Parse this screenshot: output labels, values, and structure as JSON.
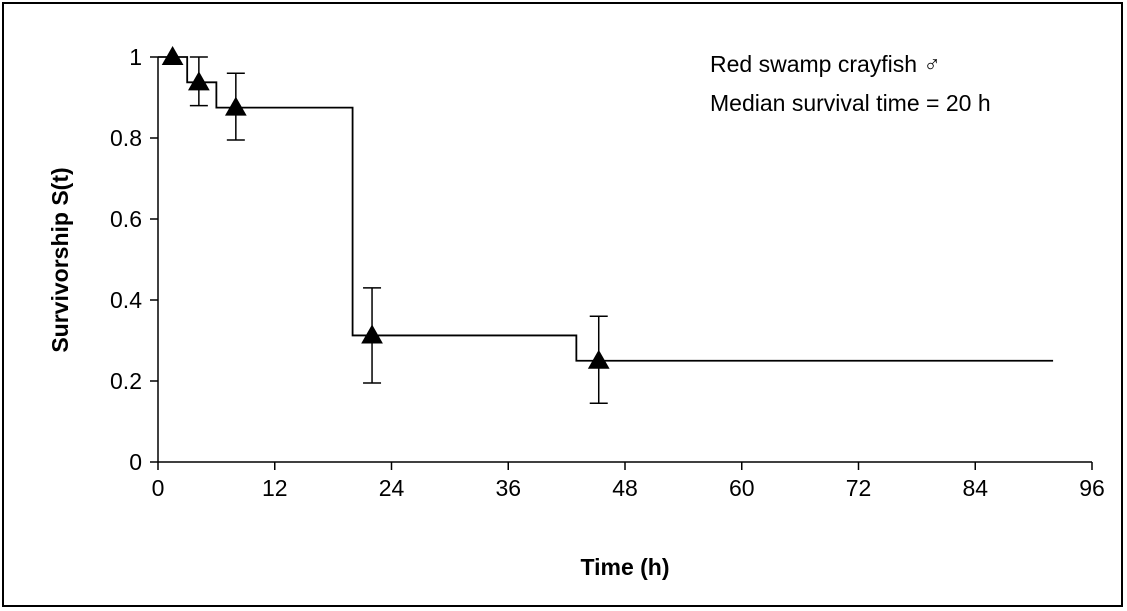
{
  "chart_data": {
    "type": "line",
    "xlabel": "Time (h)",
    "ylabel": "Survivorship S(t)",
    "xlim": [
      0,
      96
    ],
    "ylim": [
      0,
      1
    ],
    "x_ticks": [
      "0",
      "12",
      "24",
      "36",
      "48",
      "60",
      "72",
      "84",
      "96"
    ],
    "y_ticks": [
      "0",
      "0.2",
      "0.4",
      "0.6",
      "0.8",
      "1"
    ],
    "annotations": [
      "Red swamp crayfish ♂",
      "Median survival time = 20 h"
    ],
    "grid": false,
    "step_curve": {
      "x": [
        0,
        3,
        6,
        20,
        43,
        92
      ],
      "y": [
        1.0,
        0.9375,
        0.875,
        0.3125,
        0.25,
        0.25
      ]
    },
    "points": [
      {
        "x": 1.5,
        "y": 1.0,
        "err_low": 1.0,
        "err_high": 1.0
      },
      {
        "x": 4.2,
        "y": 0.9375,
        "err_low": 0.88,
        "err_high": 1.0
      },
      {
        "x": 8.0,
        "y": 0.875,
        "err_low": 0.795,
        "err_high": 0.96
      },
      {
        "x": 22.0,
        "y": 0.3125,
        "err_low": 0.195,
        "err_high": 0.43
      },
      {
        "x": 45.3,
        "y": 0.25,
        "err_low": 0.145,
        "err_high": 0.36
      }
    ],
    "colors": {
      "line": "#000000",
      "marker": "#000000"
    }
  }
}
